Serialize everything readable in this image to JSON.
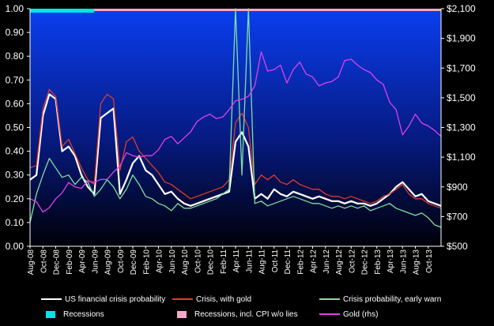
{
  "chart_data": {
    "type": "line",
    "ylim_left": [
      0,
      1
    ],
    "ylim_right": [
      500,
      2100
    ],
    "y_ticks_left": [
      "0.00",
      "0.10",
      "0.20",
      "0.30",
      "0.40",
      "0.50",
      "0.60",
      "0.70",
      "0.80",
      "0.90",
      "1.00"
    ],
    "y_ticks_right": [
      "$500",
      "$700",
      "$900",
      "$1,100",
      "$1,300",
      "$1,500",
      "$1,700",
      "$1,900",
      "$2,100"
    ],
    "x_start": "2008-08",
    "x_end": "2013-12",
    "x_tick_labels": [
      "Aug-08",
      "Oct-08",
      "Dec-08",
      "Feb-09",
      "Apr-09",
      "Jun-09",
      "Aug-09",
      "Oct-09",
      "Dec-09",
      "Feb-10",
      "Apr-10",
      "Jun-10",
      "Aug-10",
      "Oct-10",
      "Dec-10",
      "Feb-11",
      "Apr-11",
      "Jun-11",
      "Aug-11",
      "Oct-11",
      "Dec-11",
      "Feb-12",
      "Apr-12",
      "Jun-12",
      "Aug-12",
      "Oct-12",
      "Dec-12",
      "Feb-13",
      "Apr-13",
      "Jun-13",
      "Aug-13",
      "Oct-13"
    ],
    "recession_bars": [
      {
        "from": "2008-08",
        "to": "2009-06"
      }
    ],
    "recession_cpi_bars": [
      {
        "from": "2008-08",
        "to": "2013-12"
      }
    ],
    "series": [
      {
        "name": "US financial crisis probability",
        "axis": "left",
        "color": "#ffffff",
        "x": [
          "2008-08",
          "2008-09",
          "2008-10",
          "2008-11",
          "2008-12",
          "2009-01",
          "2009-02",
          "2009-03",
          "2009-04",
          "2009-05",
          "2009-06",
          "2009-07",
          "2009-08",
          "2009-09",
          "2009-10",
          "2009-11",
          "2009-12",
          "2010-01",
          "2010-02",
          "2010-03",
          "2010-04",
          "2010-05",
          "2010-06",
          "2010-07",
          "2010-08",
          "2010-09",
          "2010-10",
          "2010-11",
          "2010-12",
          "2011-01",
          "2011-02",
          "2011-03",
          "2011-04",
          "2011-05",
          "2011-06",
          "2011-07",
          "2011-08",
          "2011-09",
          "2011-10",
          "2011-11",
          "2011-12",
          "2012-01",
          "2012-02",
          "2012-03",
          "2012-04",
          "2012-05",
          "2012-06",
          "2012-07",
          "2012-08",
          "2012-09",
          "2012-10",
          "2012-11",
          "2012-12",
          "2013-01",
          "2013-02",
          "2013-03",
          "2013-04",
          "2013-05",
          "2013-06",
          "2013-07",
          "2013-08",
          "2013-09",
          "2013-10",
          "2013-11",
          "2013-12"
        ],
        "values": [
          0.28,
          0.3,
          0.55,
          0.64,
          0.62,
          0.4,
          0.42,
          0.38,
          0.3,
          0.25,
          0.22,
          0.54,
          0.56,
          0.58,
          0.22,
          0.28,
          0.35,
          0.38,
          0.32,
          0.3,
          0.26,
          0.22,
          0.23,
          0.2,
          0.18,
          0.17,
          0.18,
          0.19,
          0.2,
          0.21,
          0.22,
          0.23,
          0.44,
          0.48,
          0.42,
          0.2,
          0.22,
          0.2,
          0.24,
          0.22,
          0.21,
          0.23,
          0.22,
          0.21,
          0.2,
          0.21,
          0.2,
          0.19,
          0.19,
          0.18,
          0.19,
          0.18,
          0.18,
          0.17,
          0.18,
          0.2,
          0.22,
          0.25,
          0.27,
          0.24,
          0.21,
          0.22,
          0.19,
          0.18,
          0.17
        ]
      },
      {
        "name": "Crisis, with gold",
        "axis": "left",
        "color": "#e03b2c",
        "x": [
          "2008-08",
          "2008-09",
          "2008-10",
          "2008-11",
          "2008-12",
          "2009-01",
          "2009-02",
          "2009-03",
          "2009-04",
          "2009-05",
          "2009-06",
          "2009-07",
          "2009-08",
          "2009-09",
          "2009-10",
          "2009-11",
          "2009-12",
          "2010-01",
          "2010-02",
          "2010-03",
          "2010-04",
          "2010-05",
          "2010-06",
          "2010-07",
          "2010-08",
          "2010-09",
          "2010-10",
          "2010-11",
          "2010-12",
          "2011-01",
          "2011-02",
          "2011-03",
          "2011-04",
          "2011-05",
          "2011-06",
          "2011-07",
          "2011-08",
          "2011-09",
          "2011-10",
          "2011-11",
          "2011-12",
          "2012-01",
          "2012-02",
          "2012-03",
          "2012-04",
          "2012-05",
          "2012-06",
          "2012-07",
          "2012-08",
          "2012-09",
          "2012-10",
          "2012-11",
          "2012-12",
          "2013-01",
          "2013-02",
          "2013-03",
          "2013-04",
          "2013-05",
          "2013-06",
          "2013-07",
          "2013-08",
          "2013-09",
          "2013-10",
          "2013-11",
          "2013-12"
        ],
        "values": [
          0.33,
          0.34,
          0.58,
          0.66,
          0.63,
          0.42,
          0.45,
          0.39,
          0.33,
          0.28,
          0.26,
          0.6,
          0.64,
          0.62,
          0.32,
          0.44,
          0.46,
          0.4,
          0.37,
          0.34,
          0.31,
          0.27,
          0.26,
          0.24,
          0.22,
          0.2,
          0.21,
          0.22,
          0.23,
          0.24,
          0.25,
          0.28,
          0.52,
          0.56,
          0.5,
          0.26,
          0.3,
          0.28,
          0.3,
          0.27,
          0.26,
          0.28,
          0.26,
          0.25,
          0.24,
          0.24,
          0.22,
          0.21,
          0.21,
          0.2,
          0.21,
          0.2,
          0.19,
          0.18,
          0.19,
          0.21,
          0.22,
          0.24,
          0.26,
          0.22,
          0.2,
          0.2,
          0.18,
          0.17,
          0.16
        ]
      },
      {
        "name": "Crisis probability, early warn",
        "axis": "left",
        "color": "#7fe0a0",
        "x": [
          "2008-08",
          "2008-09",
          "2008-10",
          "2008-11",
          "2008-12",
          "2009-01",
          "2009-02",
          "2009-03",
          "2009-04",
          "2009-05",
          "2009-06",
          "2009-07",
          "2009-08",
          "2009-09",
          "2009-10",
          "2009-11",
          "2009-12",
          "2010-01",
          "2010-02",
          "2010-03",
          "2010-04",
          "2010-05",
          "2010-06",
          "2010-07",
          "2010-08",
          "2010-09",
          "2010-10",
          "2010-11",
          "2010-12",
          "2011-01",
          "2011-02",
          "2011-03",
          "2011-04",
          "2011-05",
          "2011-06",
          "2011-07",
          "2011-08",
          "2011-09",
          "2011-10",
          "2011-11",
          "2011-12",
          "2012-01",
          "2012-02",
          "2012-03",
          "2012-04",
          "2012-05",
          "2012-06",
          "2012-07",
          "2012-08",
          "2012-09",
          "2012-10",
          "2012-11",
          "2012-12",
          "2013-01",
          "2013-02",
          "2013-03",
          "2013-04",
          "2013-05",
          "2013-06",
          "2013-07",
          "2013-08",
          "2013-09",
          "2013-10",
          "2013-11",
          "2013-12"
        ],
        "values": [
          0.1,
          0.22,
          0.3,
          0.37,
          0.33,
          0.29,
          0.3,
          0.26,
          0.29,
          0.27,
          0.21,
          0.24,
          0.28,
          0.25,
          0.2,
          0.24,
          0.3,
          0.26,
          0.21,
          0.2,
          0.18,
          0.17,
          0.15,
          0.18,
          0.16,
          0.16,
          0.17,
          0.18,
          0.19,
          0.2,
          0.22,
          0.24,
          1.0,
          0.3,
          1.0,
          0.18,
          0.19,
          0.17,
          0.18,
          0.19,
          0.2,
          0.21,
          0.2,
          0.19,
          0.18,
          0.18,
          0.17,
          0.16,
          0.17,
          0.16,
          0.17,
          0.16,
          0.17,
          0.15,
          0.16,
          0.17,
          0.18,
          0.16,
          0.15,
          0.14,
          0.13,
          0.14,
          0.12,
          0.09,
          0.08
        ]
      },
      {
        "name": "Gold (rhs)",
        "axis": "right",
        "color": "#e040e8",
        "x": [
          "2008-08",
          "2008-09",
          "2008-10",
          "2008-11",
          "2008-12",
          "2009-01",
          "2009-02",
          "2009-03",
          "2009-04",
          "2009-05",
          "2009-06",
          "2009-07",
          "2009-08",
          "2009-09",
          "2009-10",
          "2009-11",
          "2009-12",
          "2010-01",
          "2010-02",
          "2010-03",
          "2010-04",
          "2010-05",
          "2010-06",
          "2010-07",
          "2010-08",
          "2010-09",
          "2010-10",
          "2010-11",
          "2010-12",
          "2011-01",
          "2011-02",
          "2011-03",
          "2011-04",
          "2011-05",
          "2011-06",
          "2011-07",
          "2011-08",
          "2011-09",
          "2011-10",
          "2011-11",
          "2011-12",
          "2012-01",
          "2012-02",
          "2012-03",
          "2012-04",
          "2012-05",
          "2012-06",
          "2012-07",
          "2012-08",
          "2012-09",
          "2012-10",
          "2012-11",
          "2012-12",
          "2013-01",
          "2013-02",
          "2013-03",
          "2013-04",
          "2013-05",
          "2013-06",
          "2013-07",
          "2013-08",
          "2013-09",
          "2013-10",
          "2013-11",
          "2013-12"
        ],
        "values": [
          820,
          800,
          730,
          760,
          820,
          860,
          930,
          900,
          890,
          940,
          930,
          950,
          950,
          1000,
          1040,
          1130,
          1110,
          1100,
          1110,
          1110,
          1150,
          1220,
          1240,
          1190,
          1230,
          1270,
          1340,
          1370,
          1390,
          1360,
          1370,
          1420,
          1480,
          1490,
          1510,
          1580,
          1810,
          1680,
          1690,
          1720,
          1600,
          1690,
          1740,
          1660,
          1640,
          1580,
          1600,
          1610,
          1640,
          1750,
          1760,
          1720,
          1690,
          1670,
          1620,
          1590,
          1470,
          1420,
          1250,
          1310,
          1390,
          1330,
          1310,
          1280,
          1240
        ]
      }
    ]
  },
  "legend": {
    "items": [
      {
        "label": "US financial crisis probability",
        "color": "#ffffff",
        "kind": "line"
      },
      {
        "label": "Crisis, with gold",
        "color": "#e03b2c",
        "kind": "line"
      },
      {
        "label": "Crisis probability, early warn",
        "color": "#7fe0a0",
        "kind": "line"
      },
      {
        "label": "Recessions",
        "color": "#00e5e5",
        "kind": "box"
      },
      {
        "label": "Recessions, incl. CPI w/o lies",
        "color": "#f5a6c8",
        "kind": "box"
      },
      {
        "label": "Gold (rhs)",
        "color": "#e040e8",
        "kind": "line"
      }
    ]
  }
}
